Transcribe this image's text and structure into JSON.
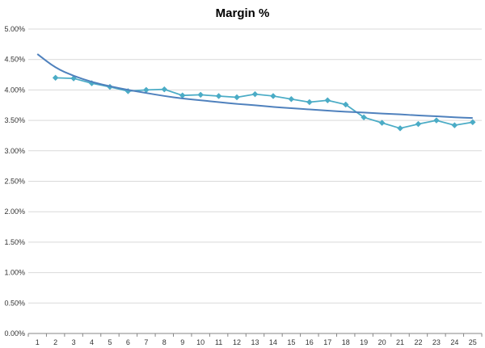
{
  "chart_data": {
    "type": "line",
    "title": "Margin %",
    "xlabel": "",
    "ylabel": "",
    "x": [
      1,
      2,
      3,
      4,
      5,
      6,
      7,
      8,
      9,
      10,
      11,
      12,
      13,
      14,
      15,
      16,
      17,
      18,
      19,
      20,
      21,
      22,
      23,
      24,
      25
    ],
    "ylim": [
      0,
      5
    ],
    "y_tick_labels": [
      "0.00%",
      "0.50%",
      "1.00%",
      "1.50%",
      "2.00%",
      "2.50%",
      "3.00%",
      "3.50%",
      "4.00%",
      "4.50%",
      "5.00%"
    ],
    "grid": "horizontal",
    "legend": "none",
    "series": [
      {
        "color": "#4bacc6",
        "marker": "diamond",
        "x": [
          2,
          3,
          4,
          5,
          6,
          7,
          8,
          9,
          10,
          11,
          12,
          13,
          14,
          15,
          16,
          17,
          18,
          19,
          20,
          21,
          22,
          23,
          24,
          25
        ],
        "values": [
          4.2,
          4.19,
          4.11,
          4.05,
          3.98,
          4.0,
          4.01,
          3.91,
          3.92,
          3.9,
          3.88,
          3.93,
          3.9,
          3.85,
          3.8,
          3.83,
          3.76,
          3.55,
          3.46,
          3.37,
          3.44,
          3.5,
          3.42,
          3.47
        ]
      },
      {
        "color": "#4f81bd",
        "marker": "none",
        "kind": "trendline",
        "x": [
          1,
          2,
          3,
          4,
          5,
          6,
          7,
          8,
          9,
          10,
          11,
          12,
          13,
          14,
          15,
          16,
          17,
          18,
          19,
          20,
          21,
          22,
          23,
          24,
          25
        ],
        "values": [
          4.59,
          4.36,
          4.23,
          4.13,
          4.06,
          4.0,
          3.95,
          3.9,
          3.86,
          3.83,
          3.8,
          3.77,
          3.75,
          3.72,
          3.7,
          3.68,
          3.66,
          3.64,
          3.63,
          3.61,
          3.6,
          3.58,
          3.57,
          3.55,
          3.54
        ]
      }
    ]
  }
}
